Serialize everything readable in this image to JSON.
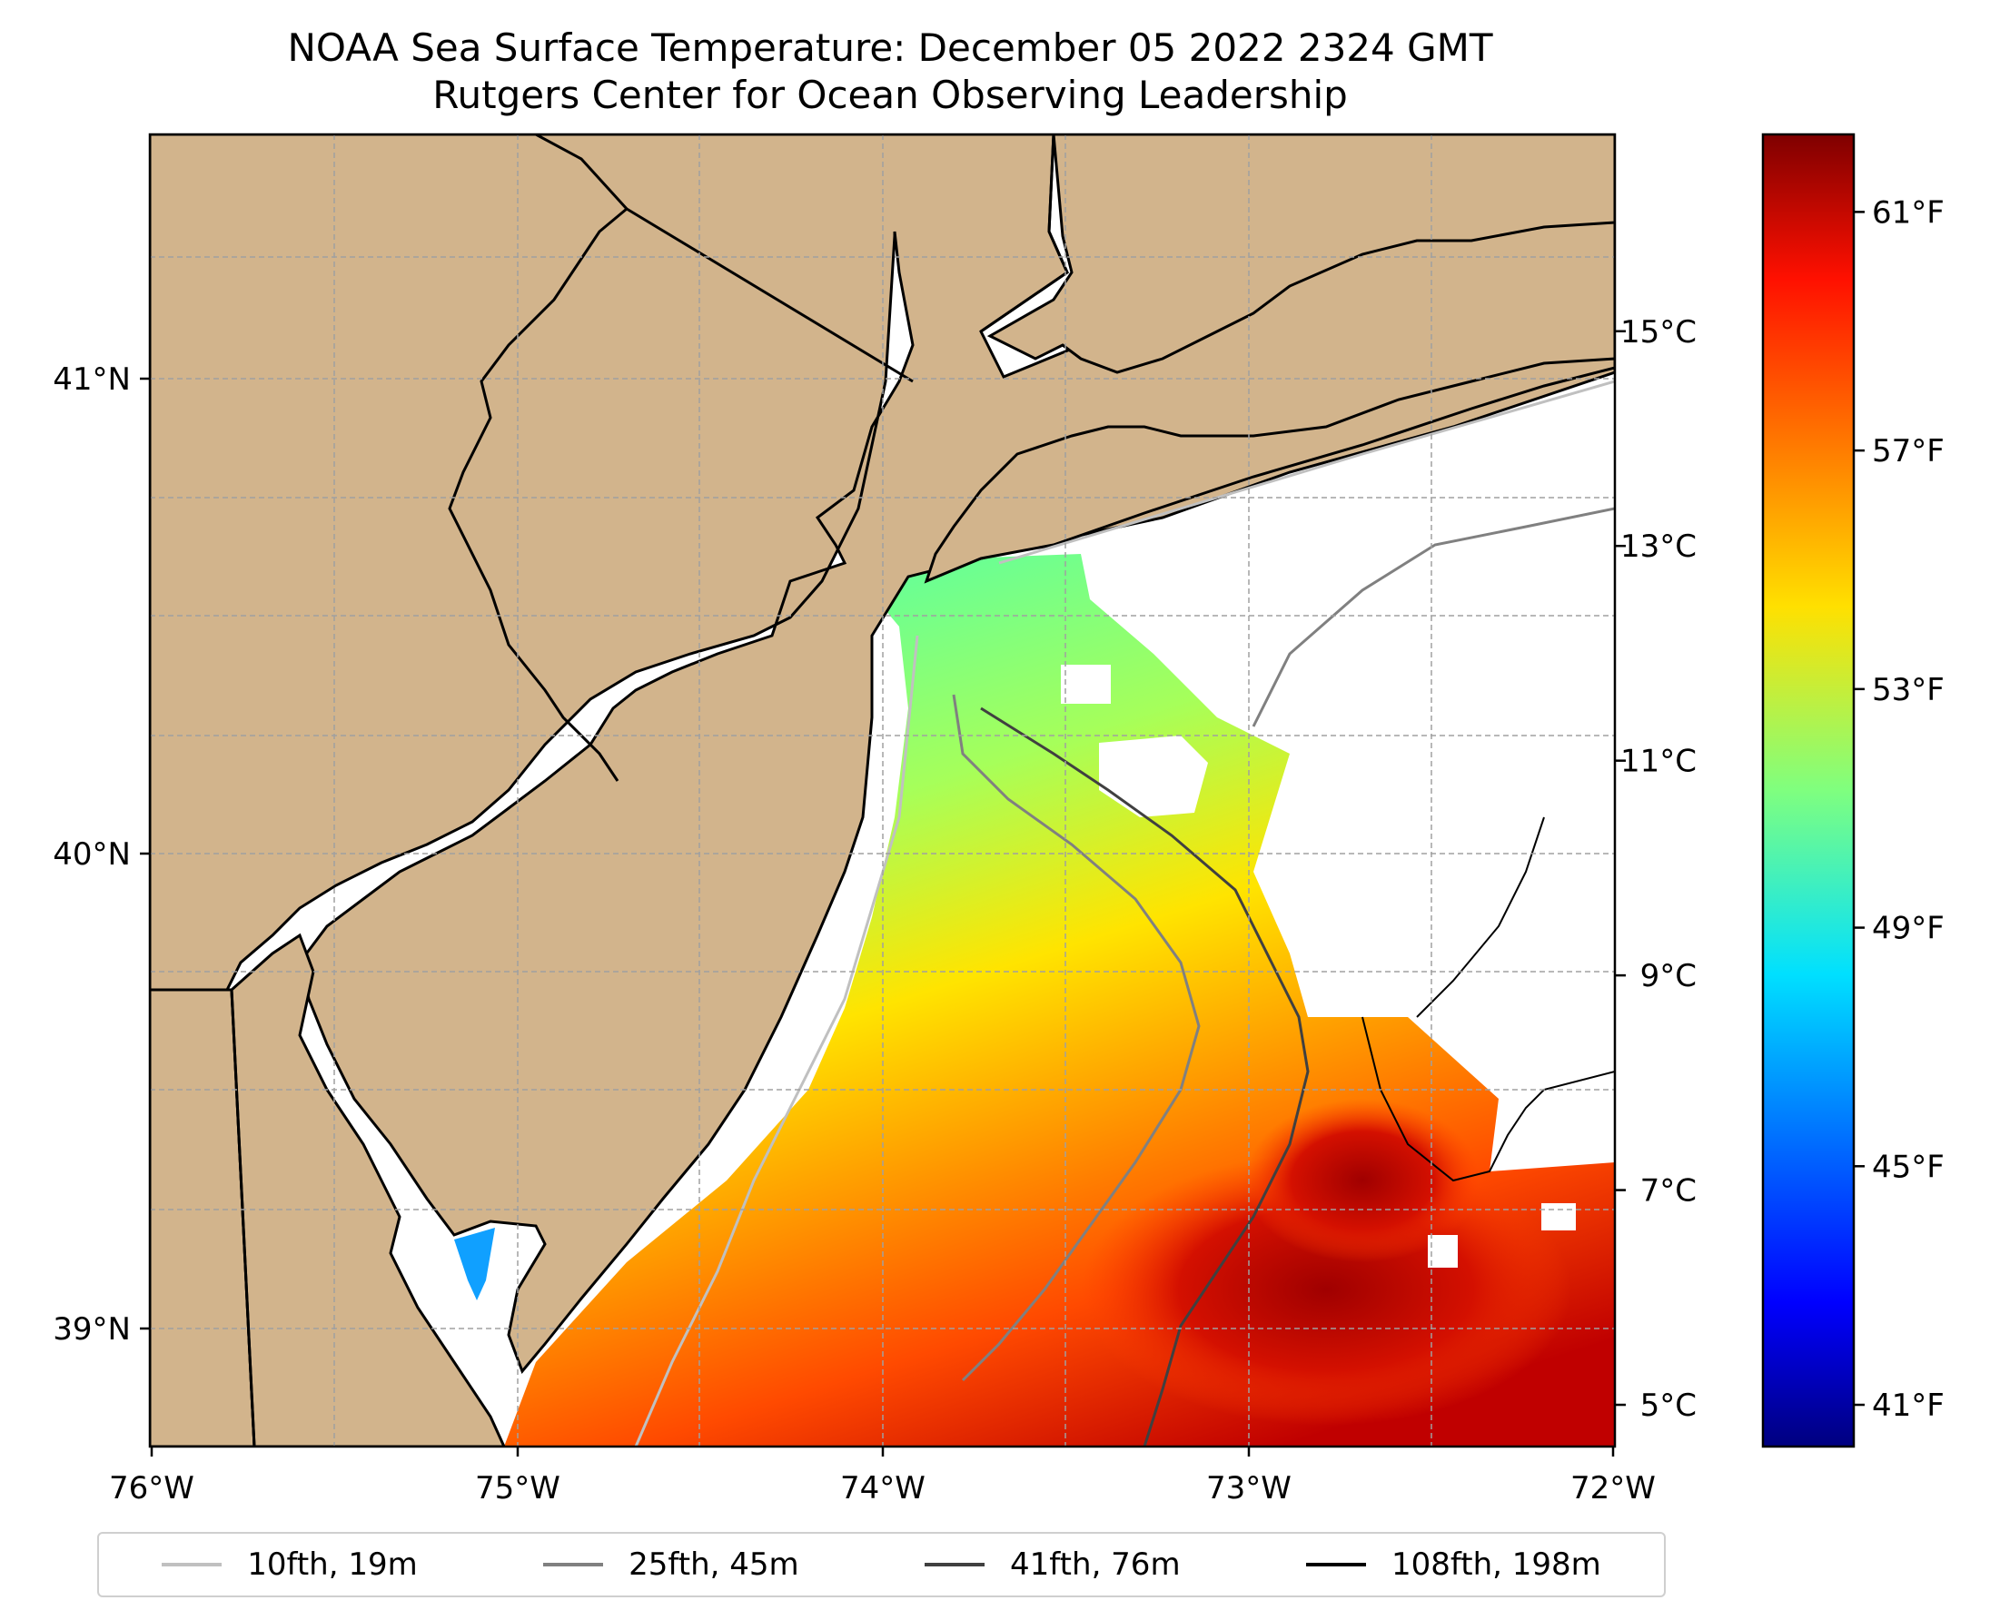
{
  "title": {
    "line1": "NOAA Sea Surface Temperature: December 05 2022 2324 GMT",
    "line2": "Rutgers Center for Ocean Observing Leadership"
  },
  "map": {
    "x_ticks": [
      "76°W",
      "75°W",
      "74°W",
      "73°W",
      "72°W"
    ],
    "y_ticks": [
      "41°N",
      "40°N",
      "39°N"
    ],
    "colors": {
      "land": "#d2b48c",
      "ocean_nodata": "#ffffff",
      "coastline": "#000000",
      "grid": "#a0a0a0"
    }
  },
  "colorbar": {
    "celsius_ticks": [
      "15°C",
      "13°C",
      "11°C",
      "9°C",
      "7°C",
      "5°C"
    ],
    "fahrenheit_ticks": [
      "61°F",
      "57°F",
      "53°F",
      "49°F",
      "45°F",
      "41°F"
    ],
    "colormap": "jet",
    "celsius_values": [
      15,
      13,
      11,
      9,
      7,
      5
    ],
    "fahrenheit_values": [
      61,
      57,
      53,
      49,
      45,
      41
    ],
    "range_f": [
      40.3,
      62.3
    ]
  },
  "legend": {
    "items": [
      {
        "label": "10fth, 19m",
        "color": "#c0c0c0"
      },
      {
        "label": "25fth, 45m",
        "color": "#808080"
      },
      {
        "label": "41fth, 76m",
        "color": "#404040"
      },
      {
        "label": "108fth, 198m",
        "color": "#000000"
      }
    ]
  }
}
